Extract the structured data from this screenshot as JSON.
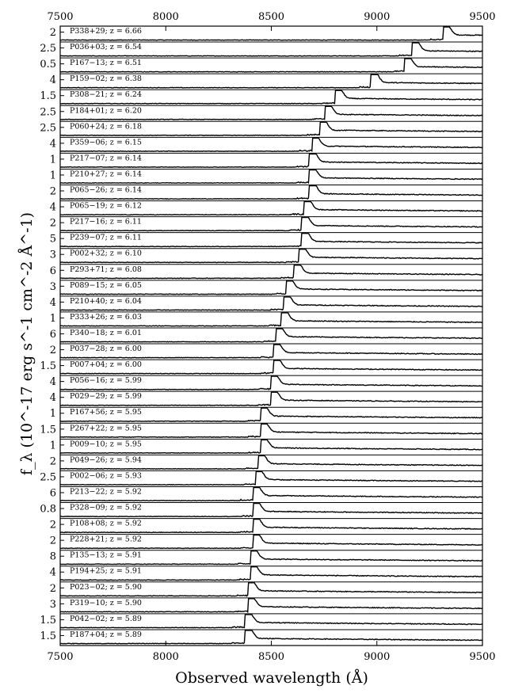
{
  "chart_data": {
    "type": "line",
    "xlabel": "Observed wavelength (Å)",
    "ylabel": "f_λ (10^-17 erg s^-1 cm^-2 Å^-1)",
    "xlim": [
      7500,
      9500
    ],
    "xticks": [
      7500,
      8000,
      8500,
      9000,
      9500
    ],
    "grid": false,
    "panels": [
      {
        "label": "P338+29; z = 6.66",
        "ytick": "2",
        "z": 6.66,
        "peak": 2.0
      },
      {
        "label": "P036+03; z = 6.54",
        "ytick": "2.5",
        "z": 6.54,
        "peak": 2.4
      },
      {
        "label": "P167−13; z = 6.51",
        "ytick": "0.5",
        "z": 6.51,
        "peak": 0.5
      },
      {
        "label": "P159−02; z = 6.38",
        "ytick": "4",
        "z": 6.38,
        "peak": 3.5
      },
      {
        "label": "P308−21; z = 6.24",
        "ytick": "1.5",
        "z": 6.24,
        "peak": 1.6
      },
      {
        "label": "P184+01; z = 6.20",
        "ytick": "2.5",
        "z": 6.2,
        "peak": 2.6
      },
      {
        "label": "P060+24; z = 6.18",
        "ytick": "2.5",
        "z": 6.18,
        "peak": 2.5
      },
      {
        "label": "P359−06; z = 6.15",
        "ytick": "4",
        "z": 6.15,
        "peak": 3.8
      },
      {
        "label": "P217−07; z = 6.14",
        "ytick": "1",
        "z": 6.14,
        "peak": 1.1
      },
      {
        "label": "P210+27; z = 6.14",
        "ytick": "1",
        "z": 6.14,
        "peak": 1.1
      },
      {
        "label": "P065−26; z = 6.14",
        "ytick": "2",
        "z": 6.14,
        "peak": 2.0
      },
      {
        "label": "P065−19; z = 6.12",
        "ytick": "4",
        "z": 6.12,
        "peak": 3.6
      },
      {
        "label": "P217−16; z = 6.11",
        "ytick": "2",
        "z": 6.11,
        "peak": 2.1
      },
      {
        "label": "P239−07; z = 6.11",
        "ytick": "5",
        "z": 6.11,
        "peak": 4.8
      },
      {
        "label": "P002+32; z = 6.10",
        "ytick": "3",
        "z": 6.1,
        "peak": 3.2
      },
      {
        "label": "P293+71; z = 6.08",
        "ytick": "6",
        "z": 6.08,
        "peak": 5.6
      },
      {
        "label": "P089−15; z = 6.05",
        "ytick": "3",
        "z": 6.05,
        "peak": 3.0
      },
      {
        "label": "P210+40; z = 6.04",
        "ytick": "4",
        "z": 6.04,
        "peak": 3.7
      },
      {
        "label": "P333+26; z = 6.03",
        "ytick": "1",
        "z": 6.03,
        "peak": 1.0
      },
      {
        "label": "P340−18; z = 6.01",
        "ytick": "6",
        "z": 6.01,
        "peak": 6.0
      },
      {
        "label": "P037−28; z = 6.00",
        "ytick": "2",
        "z": 6.0,
        "peak": 2.0
      },
      {
        "label": "P007+04; z = 6.00",
        "ytick": "1.5",
        "z": 6.0,
        "peak": 1.5
      },
      {
        "label": "P056−16; z = 5.99",
        "ytick": "4",
        "z": 5.99,
        "peak": 4.0
      },
      {
        "label": "P029−29; z = 5.99",
        "ytick": "4",
        "z": 5.99,
        "peak": 3.8
      },
      {
        "label": "P167+56; z = 5.95",
        "ytick": "1",
        "z": 5.95,
        "peak": 1.0
      },
      {
        "label": "P267+22; z = 5.95",
        "ytick": "1.5",
        "z": 5.95,
        "peak": 1.5
      },
      {
        "label": "P009−10; z = 5.95",
        "ytick": "1",
        "z": 5.95,
        "peak": 1.0
      },
      {
        "label": "P049−26; z = 5.94",
        "ytick": "2",
        "z": 5.94,
        "peak": 2.0
      },
      {
        "label": "P002−06; z = 5.93",
        "ytick": "2.5",
        "z": 5.93,
        "peak": 2.5
      },
      {
        "label": "P213−22; z = 5.92",
        "ytick": "6",
        "z": 5.92,
        "peak": 6.0
      },
      {
        "label": "P328−09; z = 5.92",
        "ytick": "0.8",
        "z": 5.92,
        "peak": 0.8
      },
      {
        "label": "P108+08; z = 5.92",
        "ytick": "2",
        "z": 5.92,
        "peak": 2.0
      },
      {
        "label": "P228+21; z = 5.92",
        "ytick": "2",
        "z": 5.92,
        "peak": 2.0
      },
      {
        "label": "P135−13; z = 5.91",
        "ytick": "8",
        "z": 5.91,
        "peak": 8.0
      },
      {
        "label": "P194+25; z = 5.91",
        "ytick": "4",
        "z": 5.91,
        "peak": 4.0
      },
      {
        "label": "P023−02; z = 5.90",
        "ytick": "2",
        "z": 5.9,
        "peak": 2.0
      },
      {
        "label": "P319−10; z = 5.90",
        "ytick": "3",
        "z": 5.9,
        "peak": 3.0
      },
      {
        "label": "P042−02; z = 5.89",
        "ytick": "1.5",
        "z": 5.89,
        "peak": 1.5
      },
      {
        "label": "P187+04; z = 5.89",
        "ytick": "1.5",
        "z": 5.89,
        "peak": 1.5
      }
    ]
  }
}
